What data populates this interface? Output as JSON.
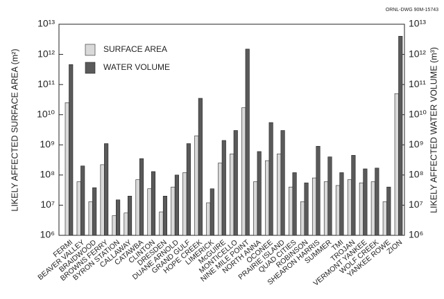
{
  "chart_data": {
    "type": "bar",
    "annotation": "ORNL-DWG 90M-15743",
    "ylabel": "LIKELY AFFECTED SURFACE AREA (m²)",
    "y2label": "LIKELY AFFECTED WATER VOLUME (m³)",
    "log_scale": true,
    "grid": false,
    "legend": "upper left",
    "categories": [
      "FERMI",
      "BEAVER VALLEY",
      "BRAIDWOOD",
      "BROWNS FERRY",
      "BYRON STATION",
      "CALLAWAY",
      "CATAWBA",
      "CLINTON",
      "DRESDEN",
      "DUANE ARNOLD",
      "GRAND GULF",
      "HOPE CREEK",
      "LIMERICK",
      "McGUIRE",
      "MONTICELLO",
      "NINE MILE POINT",
      "NORTH ANNA",
      "OCONEE",
      "PRAIRIE ISLAND",
      "QUAD CITIES",
      "ROBINSON",
      "SHEARON HARRIS",
      "SUMMER",
      "TMI",
      "TROJAN",
      "VERMONT YANKEE",
      "WOLF CREEK",
      "YANKEE ROWE",
      "ZION"
    ],
    "series": [
      {
        "name": "SURFACE AREA",
        "color": "#d9d9d9",
        "values": [
          25000000000,
          60000000,
          13000000,
          220000000,
          4500000,
          5500000,
          70000000,
          35000000,
          6000000,
          40000000,
          120000000,
          2000000000,
          12000000,
          250000000,
          500000000,
          17000000000,
          60000000,
          300000000,
          500000000,
          40000000,
          13000000,
          80000000,
          60000000,
          45000000,
          70000000,
          55000000,
          60000000,
          13000000,
          50000000000
        ]
      },
      {
        "name": "WATER VOLUME",
        "color": "#5a5a5a",
        "axis": "y2",
        "values": [
          460000000000,
          200000000,
          38000000,
          1100000000,
          15000000,
          20000000,
          350000000,
          130000000,
          20000000,
          100000000,
          1100000000,
          35000000000,
          35000000,
          1400000000,
          3000000000,
          1500000000000,
          600000000,
          5500000000,
          3000000000,
          120000000,
          55000000,
          900000000,
          400000000,
          120000000,
          450000000,
          160000000,
          170000000,
          40000000,
          4000000000000
        ]
      }
    ],
    "ylim": [
      1000000,
      10000000000000
    ],
    "yticks": [
      {
        "value": 1000000,
        "label": "10⁶"
      },
      {
        "value": 10000000,
        "label": "10⁷"
      },
      {
        "value": 100000000,
        "label": "10⁸"
      },
      {
        "value": 1000000000,
        "label": "10⁹"
      },
      {
        "value": 10000000000,
        "label": "10¹⁰"
      },
      {
        "value": 100000000000,
        "label": "10¹¹"
      },
      {
        "value": 1000000000000,
        "label": "10¹²"
      },
      {
        "value": 10000000000000,
        "label": "10¹³"
      }
    ],
    "y2lim": [
      1000000,
      10000000000000
    ],
    "y2ticks": [
      {
        "value": 1000000,
        "label": "10⁶"
      },
      {
        "value": 10000000,
        "label": "10⁷"
      },
      {
        "value": 100000000,
        "label": "10⁸"
      },
      {
        "value": 1000000000,
        "label": "10⁹"
      },
      {
        "value": 10000000000,
        "label": "10¹⁰"
      },
      {
        "value": 100000000000,
        "label": "10¹¹"
      },
      {
        "value": 1000000000000,
        "label": "10¹²"
      },
      {
        "value": 10000000000000,
        "label": "10¹³"
      }
    ]
  }
}
